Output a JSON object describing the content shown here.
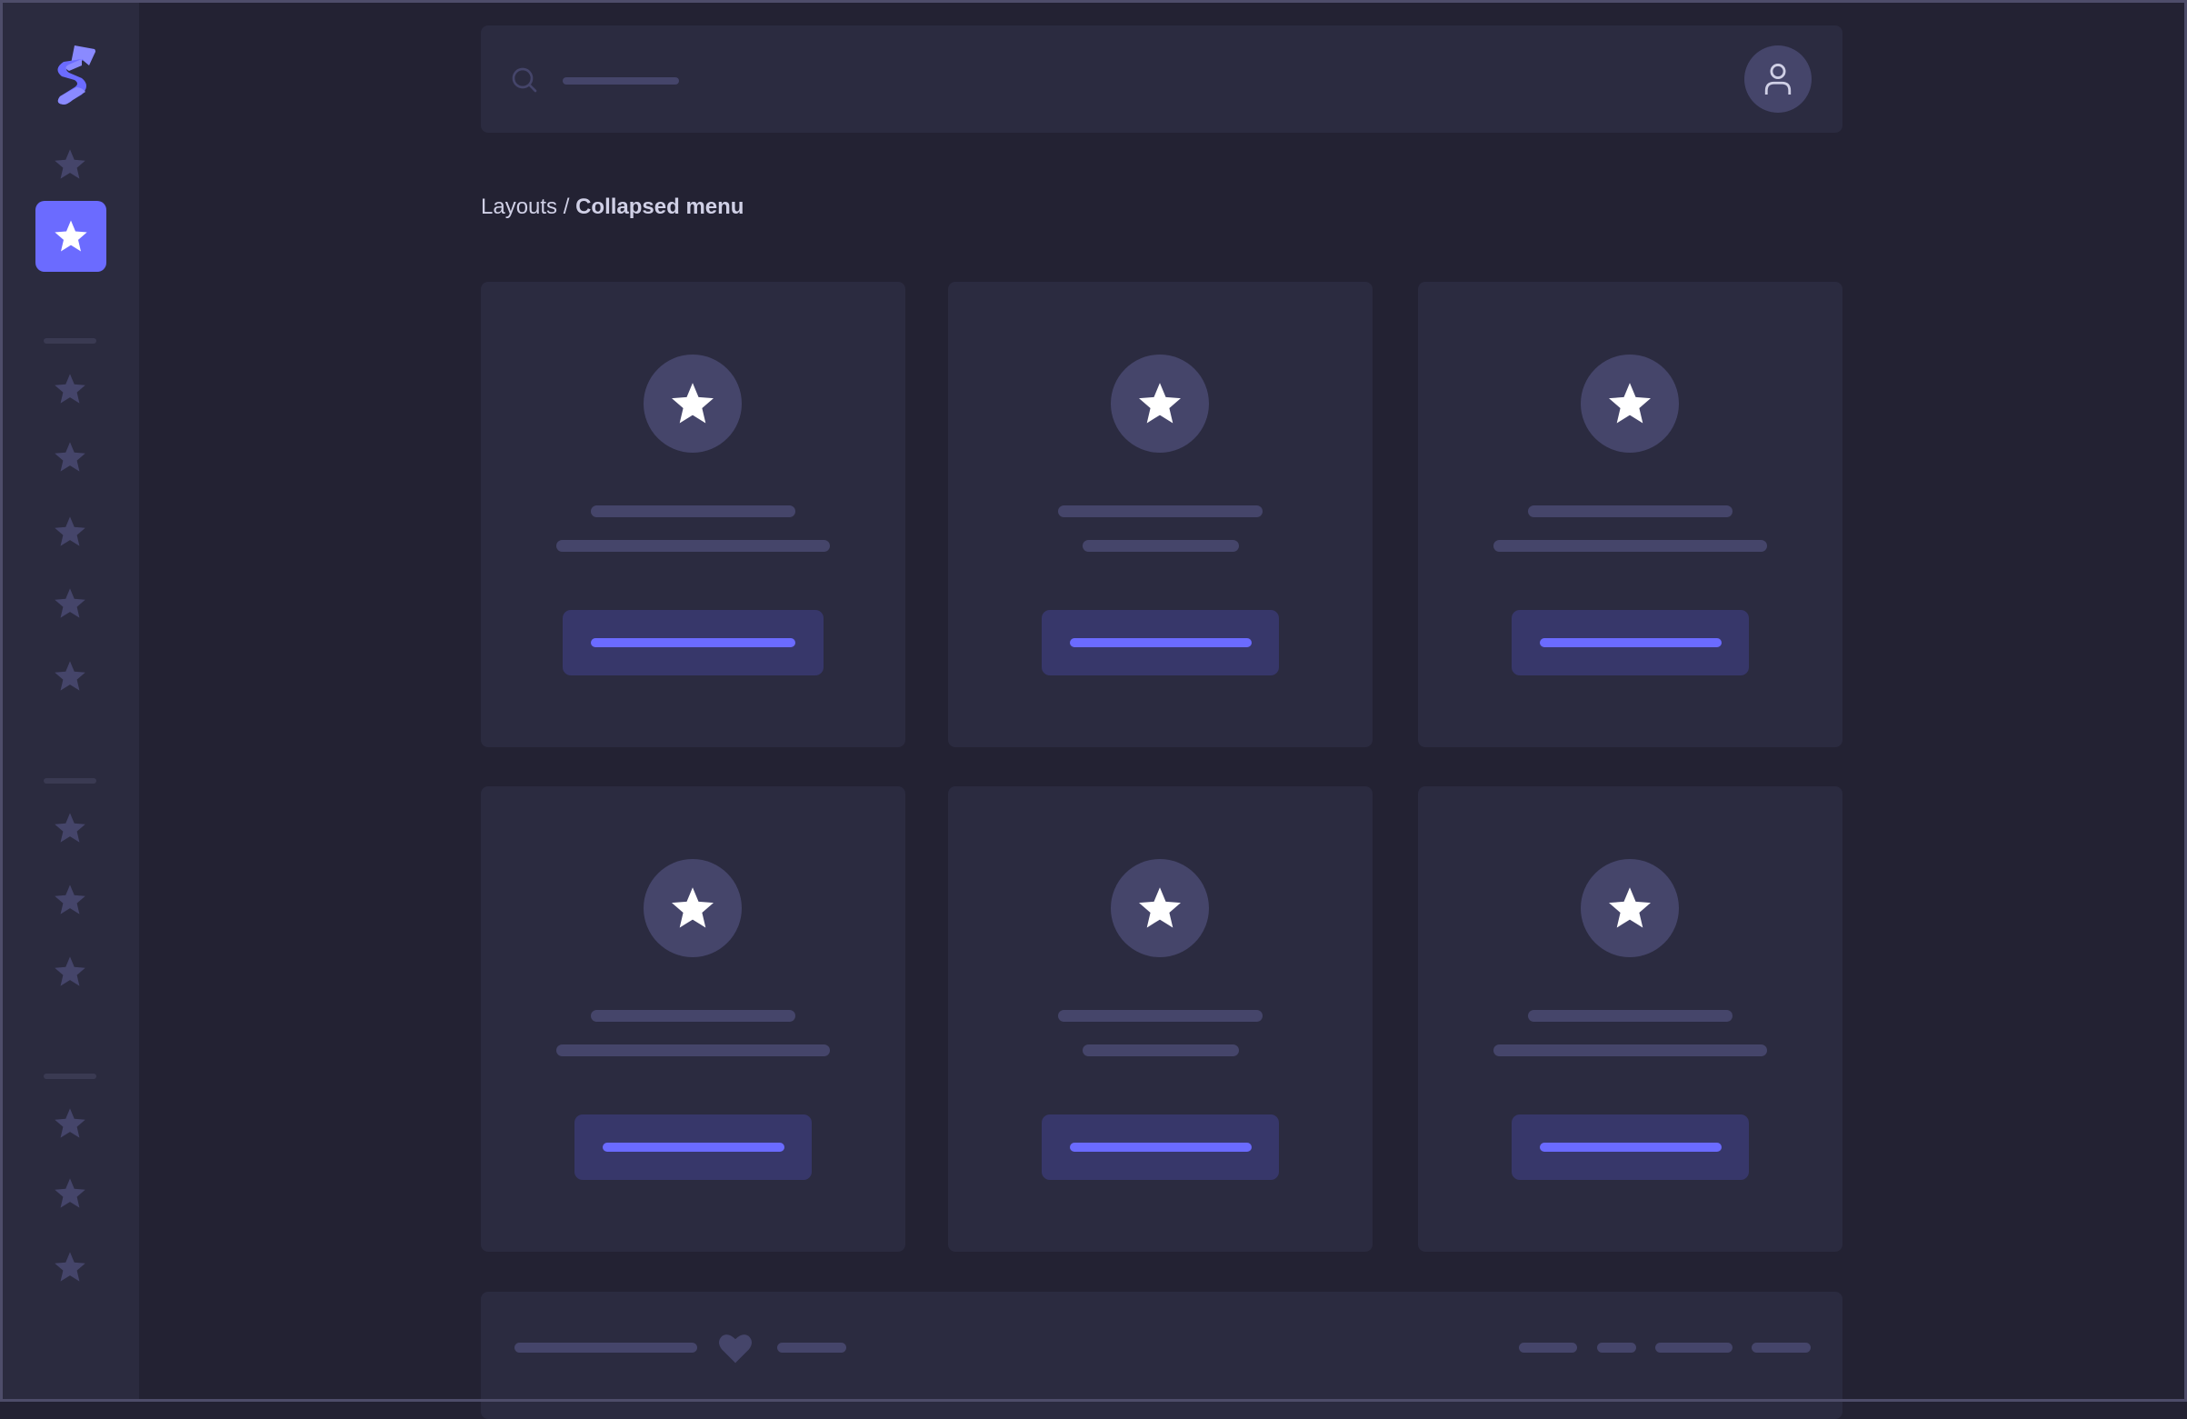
{
  "breadcrumb": {
    "parent": "Layouts",
    "separator": " / ",
    "current": "Collapsed menu"
  },
  "colors": {
    "accent": "#6b6bff",
    "background": "#232233",
    "surface": "#2b2b40",
    "sidebar": "#2b2b3f",
    "placeholder": "#45456a",
    "button": "#37376a"
  },
  "icons": {
    "logo": "brand-s-arrow-logo",
    "nav": "star-icon",
    "search": "search-icon",
    "user": "user-icon",
    "footer": "heart-icon"
  },
  "sidebar": {
    "active_index": 1,
    "item_count": 13
  }
}
